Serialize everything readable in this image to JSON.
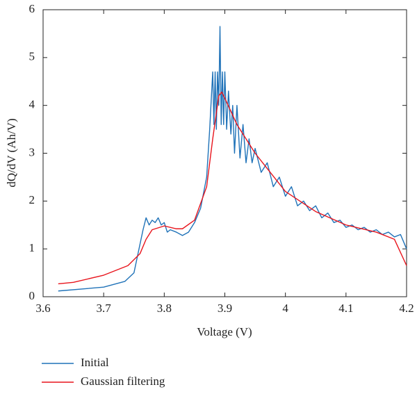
{
  "chart_data": {
    "type": "line",
    "xlabel": "Voltage (V)",
    "ylabel": "dQ/dV (Ah/V)",
    "xlim": [
      3.6,
      4.2
    ],
    "xticks": [
      3.6,
      3.7,
      3.8,
      3.9,
      4,
      4.1,
      4.2
    ],
    "ylim": [
      0,
      6
    ],
    "yticks": [
      0,
      1,
      2,
      3,
      4,
      5,
      6
    ],
    "legend": "bottom-left",
    "series": [
      {
        "name": "Initial",
        "color": "#1f72b8",
        "x": [
          3.625,
          3.7,
          3.735,
          3.75,
          3.76,
          3.765,
          3.77,
          3.775,
          3.78,
          3.785,
          3.79,
          3.795,
          3.8,
          3.805,
          3.81,
          3.82,
          3.83,
          3.84,
          3.85,
          3.86,
          3.87,
          3.875,
          3.88,
          3.882,
          3.884,
          3.886,
          3.888,
          3.89,
          3.892,
          3.894,
          3.896,
          3.898,
          3.9,
          3.903,
          3.906,
          3.91,
          3.913,
          3.916,
          3.92,
          3.925,
          3.93,
          3.935,
          3.94,
          3.945,
          3.95,
          3.96,
          3.97,
          3.98,
          3.99,
          4.0,
          4.01,
          4.02,
          4.03,
          4.04,
          4.05,
          4.06,
          4.07,
          4.08,
          4.09,
          4.1,
          4.11,
          4.12,
          4.13,
          4.14,
          4.15,
          4.16,
          4.17,
          4.18,
          4.19,
          4.2
        ],
        "values": [
          0.12,
          0.2,
          0.32,
          0.5,
          1.1,
          1.4,
          1.65,
          1.5,
          1.6,
          1.55,
          1.65,
          1.5,
          1.55,
          1.35,
          1.4,
          1.35,
          1.28,
          1.35,
          1.55,
          1.85,
          2.5,
          3.5,
          4.7,
          3.6,
          4.7,
          3.5,
          4.7,
          4.0,
          5.65,
          3.6,
          4.7,
          3.6,
          4.7,
          3.5,
          4.3,
          3.4,
          4.0,
          3.0,
          4.0,
          2.9,
          3.6,
          2.8,
          3.3,
          2.8,
          3.1,
          2.6,
          2.8,
          2.3,
          2.5,
          2.1,
          2.3,
          1.9,
          2.0,
          1.8,
          1.9,
          1.65,
          1.75,
          1.55,
          1.6,
          1.45,
          1.5,
          1.4,
          1.45,
          1.35,
          1.4,
          1.3,
          1.35,
          1.25,
          1.3,
          1.0
        ]
      },
      {
        "name": "Gaussian filtering",
        "color": "#e8141c",
        "x": [
          3.625,
          3.65,
          3.7,
          3.74,
          3.76,
          3.77,
          3.78,
          3.8,
          3.82,
          3.83,
          3.85,
          3.87,
          3.88,
          3.89,
          3.895,
          3.9,
          3.92,
          3.95,
          4.0,
          4.05,
          4.1,
          4.15,
          4.18,
          4.2
        ],
        "values": [
          0.27,
          0.3,
          0.45,
          0.65,
          0.9,
          1.2,
          1.4,
          1.48,
          1.42,
          1.42,
          1.6,
          2.3,
          3.3,
          4.2,
          4.28,
          4.15,
          3.6,
          3.0,
          2.2,
          1.78,
          1.5,
          1.35,
          1.2,
          0.65
        ]
      }
    ]
  }
}
